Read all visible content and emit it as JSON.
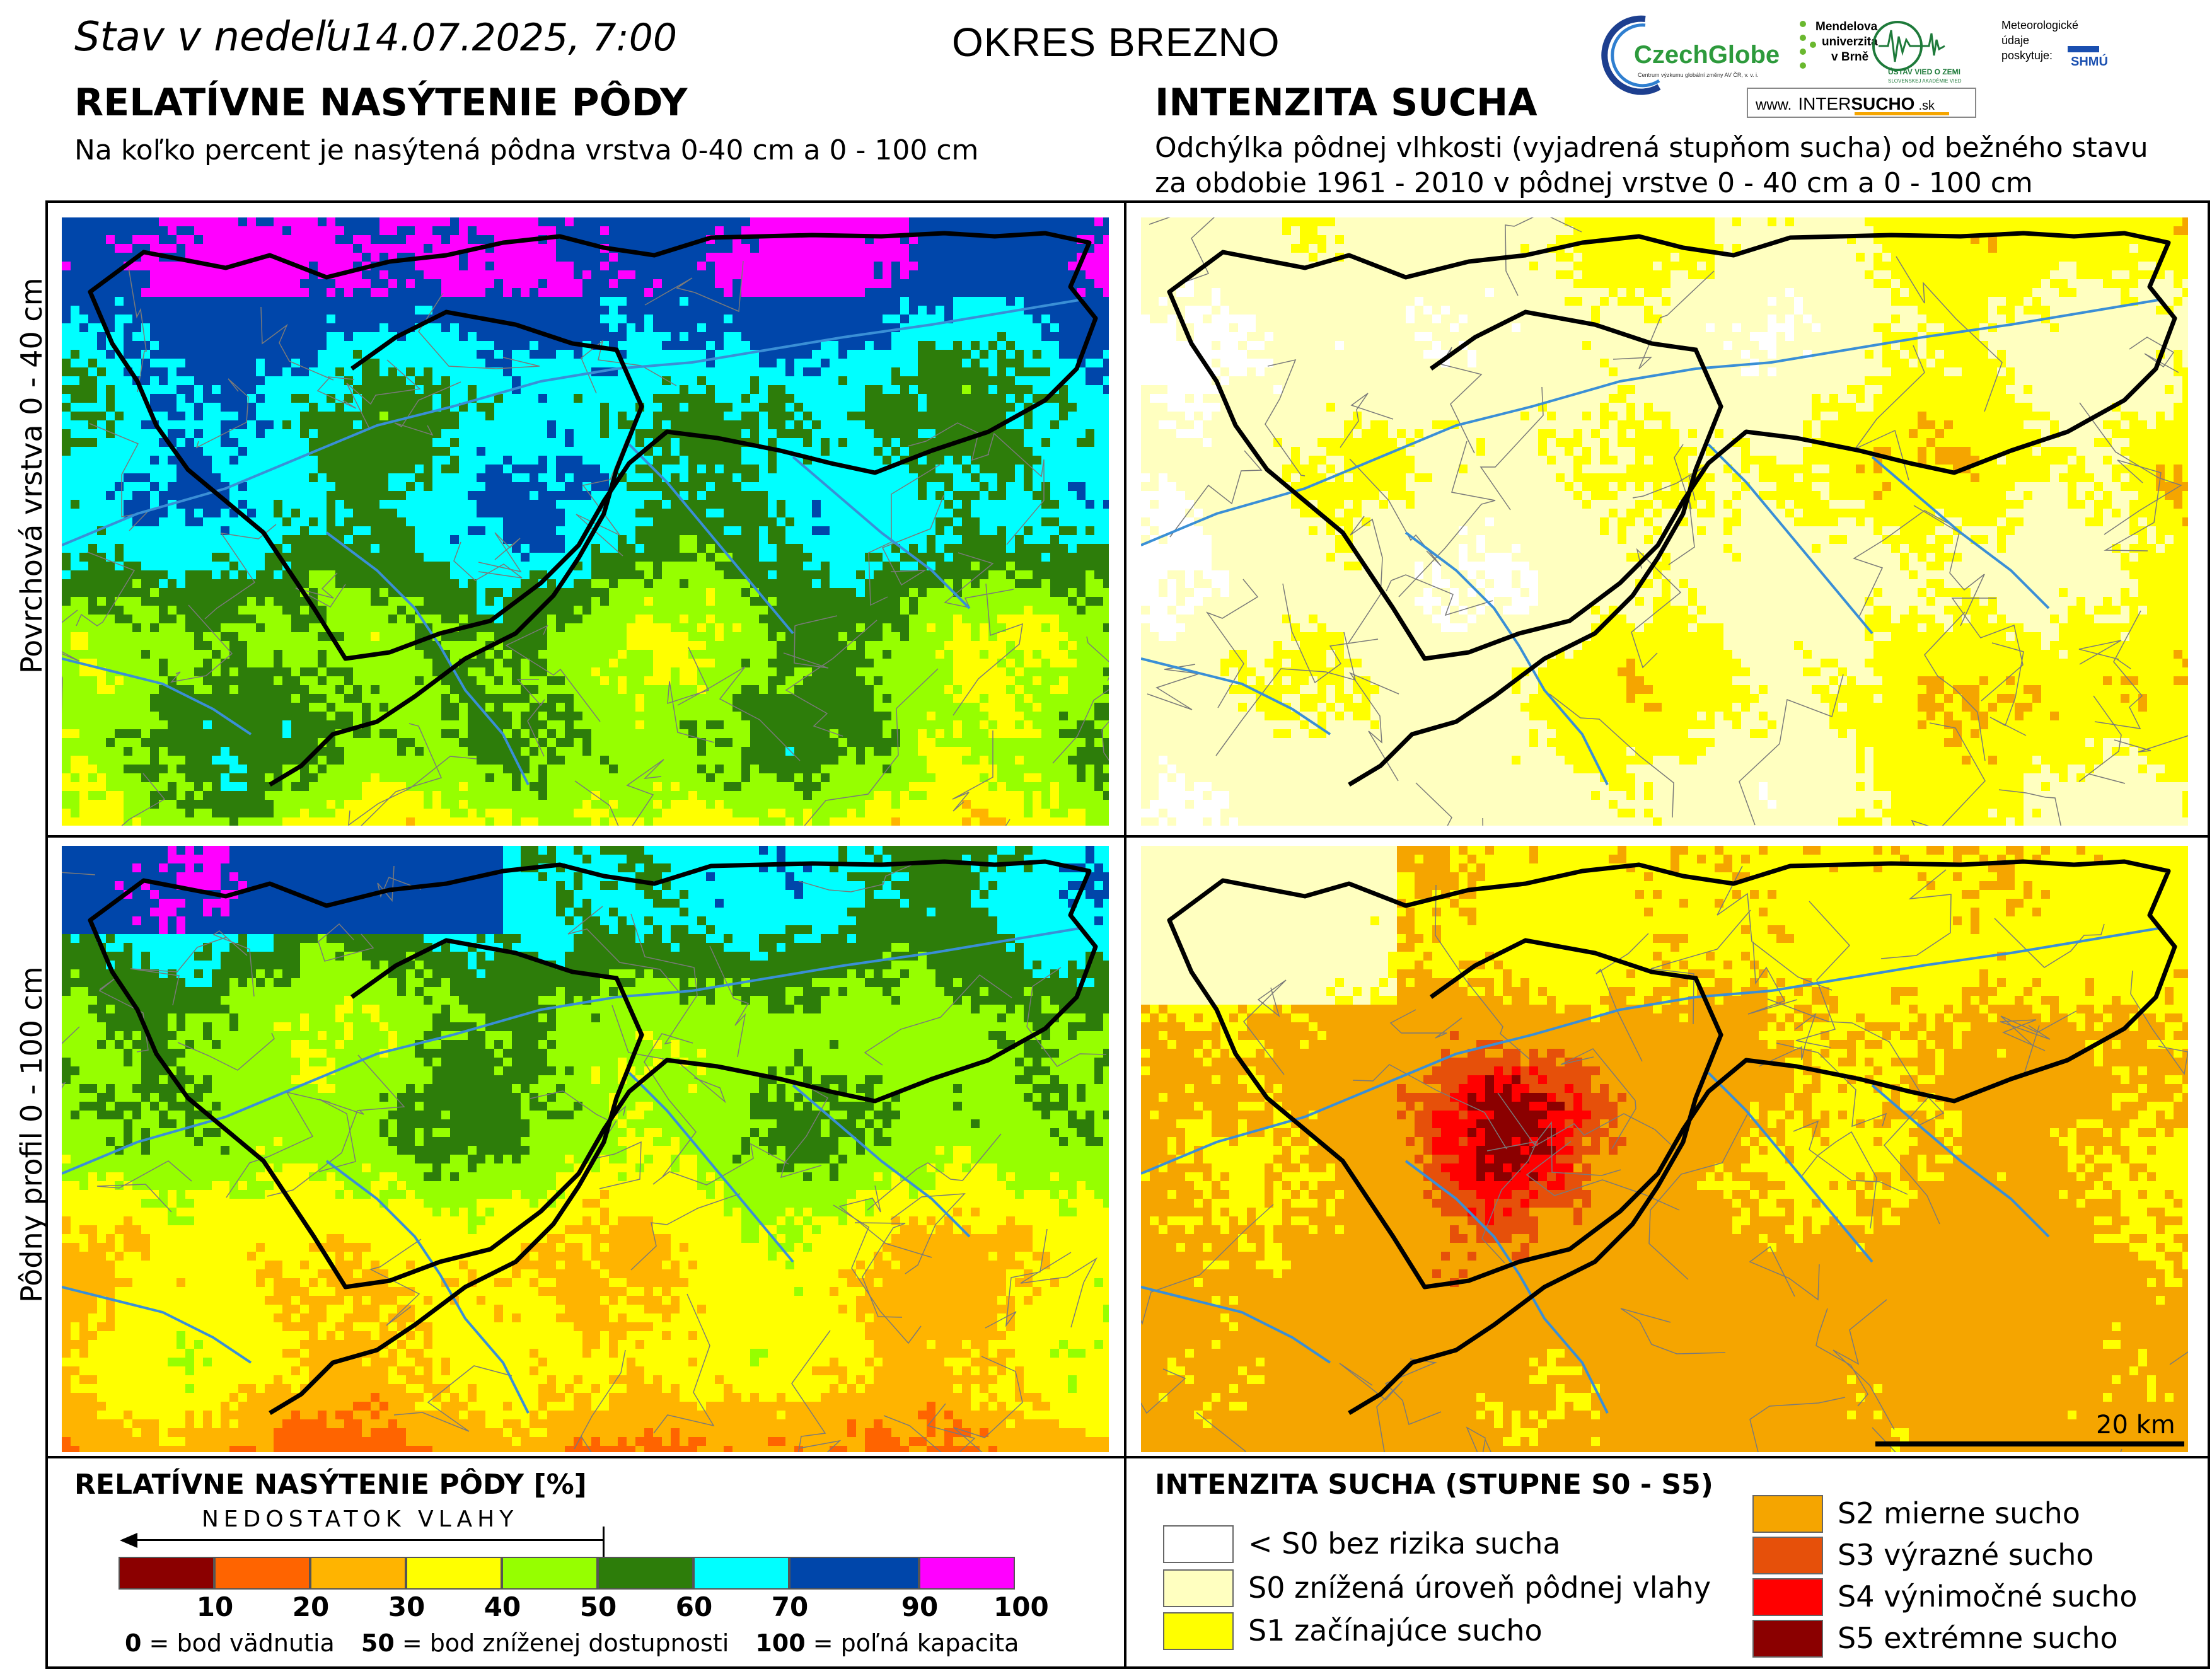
{
  "header": {
    "date_prefix": "Stav  v  nedeľu",
    "date_value": "14.07.2025, 7:00",
    "district": "OKRES  BREZNO"
  },
  "left_section": {
    "title": "RELATÍVNE NASÝTENIE PÔDY",
    "subtitle": "Na koľko percent je nasýtená pôdna vrstva 0-40 cm a 0 - 100 cm"
  },
  "right_section": {
    "title": "INTENZITA SUCHA",
    "subtitle_line1": "Odchýlka pôdnej vlhkosti (vyjadrená stupňom sucha) od bežného stavu",
    "subtitle_line2": "za obdobie 1961 - 2010 v pôdnej vrstve 0 - 40 cm a 0 - 100 cm"
  },
  "logos": {
    "czechglobe": "CzechGlobe",
    "czechglobe_sub": "Centrum výzkumu globální změny AV ČR, v. v. i.",
    "mendelu_line1": "Mendelova",
    "mendelu_line2": "univerzita",
    "mendelu_line3": "v Brně",
    "ustav": "ÚSTAV VIED O ZEMI",
    "ustav_sub": "SLOVENSKEJ AKADÉMIE VIED",
    "meteo_line1": "Meteorologické",
    "meteo_line2": "údaje",
    "meteo_line3": "poskytuje:",
    "shmu": "SHMÚ",
    "intersucho_prefix": "www.",
    "intersucho_a": "INTER",
    "intersucho_b": "SUCHO",
    "intersucho_suffix": ".sk"
  },
  "row_labels": {
    "top": "Povrchová vrstva 0 - 40 cm",
    "bottom": "Pôdny profil 0 - 100 cm"
  },
  "scale_bar": {
    "label": "20 km"
  },
  "saturation_legend": {
    "title": "RELATÍVNE NASÝTENIE PÔDY [%]",
    "arrow_label": "NEDOSTATOK VLAHY",
    "classes": [
      {
        "from": 0,
        "to": 10,
        "color": "#8b0000"
      },
      {
        "from": 10,
        "to": 20,
        "color": "#ff6400"
      },
      {
        "from": 20,
        "to": 30,
        "color": "#ffb400"
      },
      {
        "from": 30,
        "to": 40,
        "color": "#ffff00"
      },
      {
        "from": 40,
        "to": 50,
        "color": "#96ff00"
      },
      {
        "from": 50,
        "to": 60,
        "color": "#2d7d0a"
      },
      {
        "from": 60,
        "to": 70,
        "color": "#00ffff"
      },
      {
        "from": 70,
        "to": 90,
        "color": "#0046aa"
      },
      {
        "from": 90,
        "to": 100,
        "color": "#ff00ff"
      }
    ],
    "ticks": [
      "10",
      "20",
      "30",
      "40",
      "50",
      "60",
      "70",
      "90",
      "100"
    ],
    "note_0_value": "0",
    "note_0_text": " = bod vädnutia",
    "note_50_value": "50",
    "note_50_text": " = bod zníženej dostupnosti",
    "note_100_value": "100",
    "note_100_text": " = poľná kapacita"
  },
  "drought_legend": {
    "title": "INTENZITA SUCHA (STUPNE S0 - S5)",
    "classes": [
      {
        "label": "< S0 bez rizika sucha",
        "color": "#ffffff"
      },
      {
        "label": "S0 znížená úroveň pôdnej vlahy",
        "color": "#ffffc0"
      },
      {
        "label": "S1 začínajúce sucho",
        "color": "#ffff00"
      },
      {
        "label": "S2 mierne sucho",
        "color": "#f5a500"
      },
      {
        "label": "S3 výrazné sucho",
        "color": "#e6500a"
      },
      {
        "label": "S4 výnimočné sucho",
        "color": "#ff0000"
      },
      {
        "label": "S5 extrémne sucho",
        "color": "#8b0000"
      }
    ]
  }
}
